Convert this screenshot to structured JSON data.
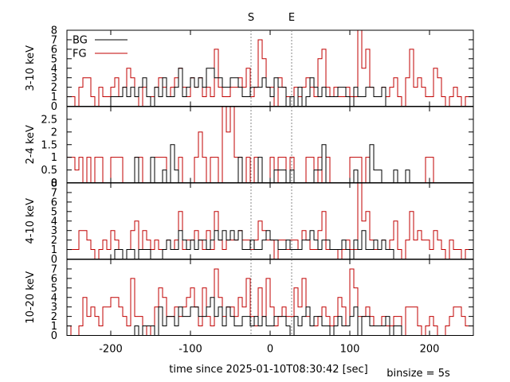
{
  "chart_data": {
    "type": "step",
    "xlabel": "time since 2025-01-10T08:30:42 [sec]",
    "xlim": [
      -255,
      255
    ],
    "xticks": [
      -200,
      -100,
      0,
      100,
      200
    ],
    "footnote": "binsize = 5s",
    "markers": [
      {
        "label": "S",
        "x": -24
      },
      {
        "label": "E",
        "x": 27
      }
    ],
    "legend": [
      {
        "name": "BG",
        "color": "#000000"
      },
      {
        "name": "FG",
        "color": "#c00000"
      }
    ],
    "bin_start": -255,
    "bin_size": 5,
    "panels": [
      {
        "ylabel": "3-10 keV",
        "ylim": [
          0,
          8
        ],
        "yticks": [
          0,
          1,
          2,
          3,
          4,
          5,
          6,
          7,
          8
        ],
        "series": [
          {
            "name": "BG",
            "values": [
              0,
              0,
              0,
              0,
              0,
              0,
              0,
              0,
              0,
              0,
              0,
              1,
              1,
              1,
              2,
              1,
              2,
              1,
              2,
              3,
              1,
              0,
              2,
              1,
              3,
              1,
              1,
              2,
              4,
              1,
              2,
              3,
              2,
              3,
              2,
              4,
              4,
              3,
              3,
              2,
              2,
              3,
              3,
              2,
              1,
              1,
              2,
              2,
              2,
              3,
              2,
              1,
              3,
              2,
              2,
              0,
              1,
              0,
              2,
              0,
              1,
              3,
              2,
              1,
              2,
              1,
              1,
              1,
              2,
              2,
              1,
              0,
              2,
              1,
              1,
              2,
              2,
              1,
              1,
              2,
              0,
              0,
              0,
              0,
              0,
              0,
              0,
              0,
              0,
              0,
              0,
              0,
              0,
              0,
              0,
              0,
              0,
              0,
              0,
              0,
              0,
              0
            ]
          },
          {
            "name": "FG",
            "values": [
              1,
              1,
              0,
              2,
              3,
              3,
              1,
              0,
              2,
              1,
              1,
              2,
              3,
              1,
              2,
              4,
              3,
              1,
              0,
              2,
              1,
              1,
              2,
              3,
              2,
              1,
              2,
              3,
              4,
              2,
              1,
              3,
              2,
              3,
              1,
              2,
              1,
              6,
              2,
              1,
              1,
              2,
              2,
              3,
              2,
              4,
              1,
              2,
              7,
              5,
              2,
              2,
              0,
              3,
              2,
              1,
              0,
              2,
              1,
              2,
              3,
              2,
              1,
              5,
              6,
              2,
              1,
              2,
              1,
              1,
              2,
              1,
              1,
              8,
              4,
              6,
              2,
              1,
              1,
              2,
              1,
              2,
              3,
              1,
              0,
              3,
              6,
              2,
              3,
              2,
              1,
              1,
              4,
              3,
              1,
              0,
              1,
              2,
              1,
              0,
              1,
              1
            ]
          }
        ]
      },
      {
        "ylabel": "2-4 keV",
        "ylim": [
          0,
          3
        ],
        "yticks": [
          0,
          0.5,
          1,
          1.5,
          2,
          2.5
        ],
        "series": [
          {
            "name": "BG",
            "values": [
              0,
              0,
              0,
              0,
              0,
              0,
              0,
              0,
              0,
              0,
              0,
              0,
              0,
              0,
              0,
              0,
              0,
              1,
              0,
              0,
              0,
              1,
              0,
              0,
              0.5,
              0,
              1.5,
              0.5,
              0,
              0,
              0,
              0,
              0,
              0,
              0,
              0,
              0,
              0,
              0,
              0,
              0,
              0,
              0,
              1,
              0,
              0,
              0,
              0,
              1,
              0,
              0,
              0,
              0.5,
              0.5,
              0.5,
              0,
              0.5,
              0,
              0,
              0,
              0,
              0,
              0.5,
              0.5,
              1.5,
              0,
              0,
              0,
              0,
              0,
              0,
              0,
              0.5,
              0,
              0,
              0,
              1.5,
              0.5,
              0.5,
              0,
              0,
              0,
              0.5,
              0,
              0,
              0.5,
              0,
              0,
              0,
              0,
              0,
              0,
              0,
              0,
              0,
              0,
              0,
              0,
              0,
              0,
              0,
              0
            ]
          },
          {
            "name": "FG",
            "values": [
              1,
              1,
              0.5,
              1,
              0,
              1,
              0,
              1,
              1,
              0,
              0,
              1,
              1,
              1,
              0,
              0,
              0,
              1,
              1,
              0,
              0,
              0,
              1,
              1,
              1,
              0,
              0,
              0,
              1,
              0,
              0,
              0,
              1,
              2,
              1,
              0,
              1,
              1,
              0,
              3,
              2,
              3,
              1,
              1,
              0,
              1,
              0,
              1,
              0,
              0,
              0,
              1,
              0,
              1,
              1,
              0,
              1,
              0,
              0,
              0,
              1,
              1,
              0,
              1,
              0,
              1,
              0,
              0,
              0,
              0,
              0,
              1,
              1,
              1,
              0,
              1,
              0,
              0,
              0,
              0,
              0,
              0,
              0,
              0,
              0,
              0,
              0,
              0,
              0,
              0,
              1,
              1,
              0,
              0,
              0,
              0,
              0,
              0,
              0,
              0,
              0,
              0
            ]
          }
        ]
      },
      {
        "ylabel": "4-10 keV",
        "ylim": [
          0,
          8
        ],
        "yticks": [
          0,
          1,
          2,
          3,
          4,
          5,
          6,
          7,
          8
        ],
        "series": [
          {
            "name": "BG",
            "values": [
              0,
              0,
              0,
              0,
              0,
              0,
              0,
              0,
              0,
              0,
              0,
              0,
              1,
              1,
              0,
              1,
              1,
              0,
              1,
              1,
              1,
              0,
              0,
              0,
              1,
              2,
              1,
              1,
              3,
              2,
              1,
              2,
              1,
              2,
              2,
              1,
              2,
              3,
              2,
              3,
              2,
              3,
              2,
              3,
              1,
              1,
              2,
              1,
              1,
              2,
              3,
              2,
              2,
              1,
              1,
              2,
              1,
              1,
              1,
              2,
              2,
              3,
              2,
              1,
              2,
              2,
              1,
              1,
              1,
              2,
              1,
              0,
              2,
              1,
              3,
              1,
              1,
              2,
              1,
              2,
              1,
              1,
              0,
              0,
              0,
              0,
              0,
              0,
              0,
              0,
              0,
              0,
              0,
              0,
              0,
              0,
              0,
              0,
              0,
              0,
              0,
              0
            ]
          },
          {
            "name": "FG",
            "values": [
              1,
              1,
              1,
              3,
              3,
              2,
              1,
              0,
              1,
              2,
              1,
              3,
              2,
              1,
              0,
              1,
              3,
              4,
              1,
              3,
              2,
              1,
              2,
              1,
              1,
              2,
              1,
              2,
              5,
              1,
              2,
              2,
              3,
              2,
              1,
              3,
              1,
              5,
              2,
              1,
              2,
              2,
              2,
              3,
              2,
              2,
              1,
              2,
              4,
              3,
              2,
              2,
              0,
              2,
              2,
              1,
              2,
              2,
              1,
              3,
              2,
              1,
              1,
              3,
              5,
              1,
              1,
              1,
              0,
              1,
              2,
              1,
              1,
              8,
              4,
              5,
              2,
              1,
              1,
              2,
              1,
              2,
              4,
              1,
              0,
              2,
              5,
              2,
              3,
              2,
              2,
              1,
              3,
              2,
              1,
              0,
              2,
              1,
              1,
              0,
              1,
              1
            ]
          }
        ]
      },
      {
        "ylabel": "10-20 keV",
        "ylim": [
          0,
          8
        ],
        "yticks": [
          0,
          1,
          2,
          3,
          4,
          5,
          6,
          7
        ],
        "series": [
          {
            "name": "BG",
            "values": [
              0,
              0,
              0,
              0,
              0,
              0,
              0,
              0,
              0,
              0,
              0,
              0,
              0,
              0,
              0,
              0,
              0,
              1,
              0,
              1,
              1,
              1,
              0,
              3,
              1,
              2,
              2,
              1,
              3,
              2,
              2,
              3,
              3,
              2,
              2,
              3,
              4,
              2,
              3,
              1,
              3,
              2,
              1,
              1,
              2,
              2,
              1,
              2,
              1,
              2,
              1,
              1,
              2,
              2,
              2,
              1,
              0,
              2,
              1,
              2,
              3,
              1,
              2,
              2,
              1,
              1,
              0,
              1,
              2,
              1,
              1,
              2,
              3,
              0,
              2,
              2,
              1,
              1,
              1,
              1,
              2,
              0,
              1,
              1,
              0,
              0,
              0,
              0,
              0,
              0,
              0,
              0,
              0,
              0,
              0,
              0,
              0,
              0,
              0,
              0,
              0,
              0
            ]
          },
          {
            "name": "FG",
            "values": [
              1,
              0,
              0,
              1,
              4,
              2,
              3,
              2,
              1,
              3,
              3,
              4,
              4,
              3,
              2,
              1,
              6,
              2,
              2,
              1,
              0,
              1,
              3,
              5,
              4,
              2,
              2,
              3,
              2,
              3,
              4,
              5,
              3,
              1,
              5,
              2,
              1,
              7,
              4,
              2,
              3,
              3,
              2,
              4,
              3,
              6,
              2,
              1,
              5,
              2,
              6,
              3,
              1,
              2,
              3,
              2,
              2,
              5,
              3,
              6,
              2,
              1,
              1,
              2,
              3,
              2,
              1,
              2,
              4,
              3,
              1,
              7,
              5,
              2,
              2,
              3,
              2,
              1,
              1,
              2,
              1,
              1,
              2,
              2,
              0,
              3,
              3,
              3,
              1,
              0,
              1,
              2,
              1,
              0,
              0,
              1,
              2,
              3,
              3,
              2,
              1,
              1
            ]
          }
        ]
      }
    ]
  }
}
